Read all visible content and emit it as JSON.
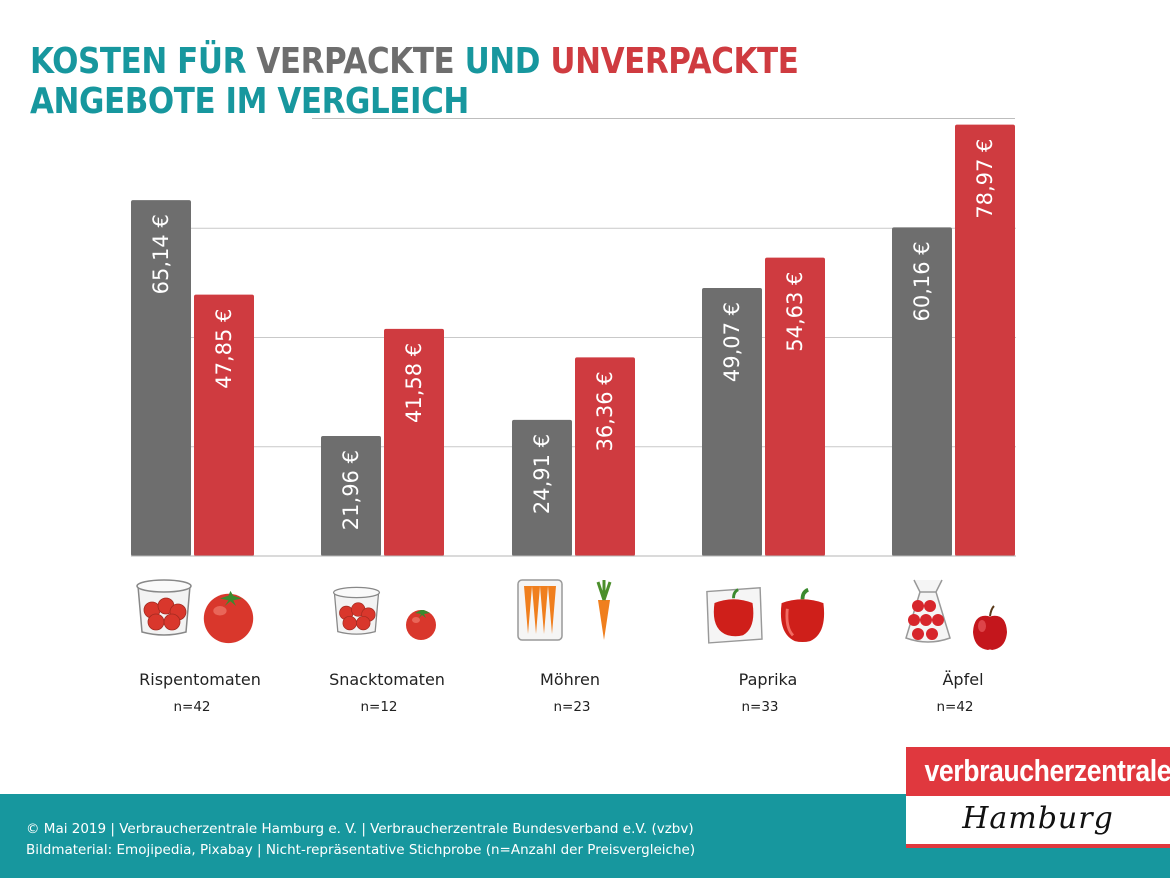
{
  "title": {
    "part1": "KOSTEN FÜR ",
    "part2": "VERPACKTE",
    "part3": " UND ",
    "part4": "UNVERPACKTE",
    "line2": "ANGEBOTE IM VERGLEICH"
  },
  "colors": {
    "teal": "#17979e",
    "packaged": "#6e6e6e",
    "unpackaged": "#cf3b40"
  },
  "chart_data": {
    "type": "bar",
    "title": "KOSTEN FÜR VERPACKTE UND UNVERPACKTE ANGEBOTE IM VERGLEICH",
    "categories": [
      "Rispentomaten",
      "Snacktomaten",
      "Möhren",
      "Paprika",
      "Äpfel"
    ],
    "sample_sizes": [
      "n=42",
      "n=12",
      "n=23",
      "n=33",
      "n=42"
    ],
    "series": [
      {
        "name": "verpackt",
        "values": [
          65.14,
          21.96,
          24.91,
          49.07,
          60.16
        ],
        "labels": [
          "65,14 €",
          "21,96 €",
          "24,91 €",
          "49,07 €",
          "60,16 €"
        ]
      },
      {
        "name": "unverpackt",
        "values": [
          47.85,
          41.58,
          36.36,
          54.63,
          78.97
        ],
        "labels": [
          "47,85 €",
          "41,58 €",
          "36,36 €",
          "54,63 €",
          "78,97 €"
        ]
      }
    ],
    "ylim": [
      0,
      80
    ],
    "gridlines": [
      20,
      40,
      60
    ],
    "xlabel": "",
    "ylabel": ""
  },
  "icons": [
    {
      "packaged": "tomato-container-icon",
      "unpackaged": "tomato-icon"
    },
    {
      "packaged": "cherry-tomato-container-icon",
      "unpackaged": "cherry-tomato-icon"
    },
    {
      "packaged": "bagged-carrots-icon",
      "unpackaged": "carrot-icon"
    },
    {
      "packaged": "wrapped-pepper-icon",
      "unpackaged": "red-pepper-icon"
    },
    {
      "packaged": "bagged-apples-icon",
      "unpackaged": "apple-icon"
    }
  ],
  "footer": {
    "line1": "© Mai 2019 | Verbraucherzentrale Hamburg e. V. | Verbraucherzentrale Bundesverband e.V. (vzbv)",
    "line2": "Bildmaterial: Emojipedia, Pixabay | Nicht-repräsentative Stichprobe (n=Anzahl der Preisvergleiche)"
  },
  "logo": {
    "name": "verbraucherzentrale",
    "city": "Hamburg"
  }
}
